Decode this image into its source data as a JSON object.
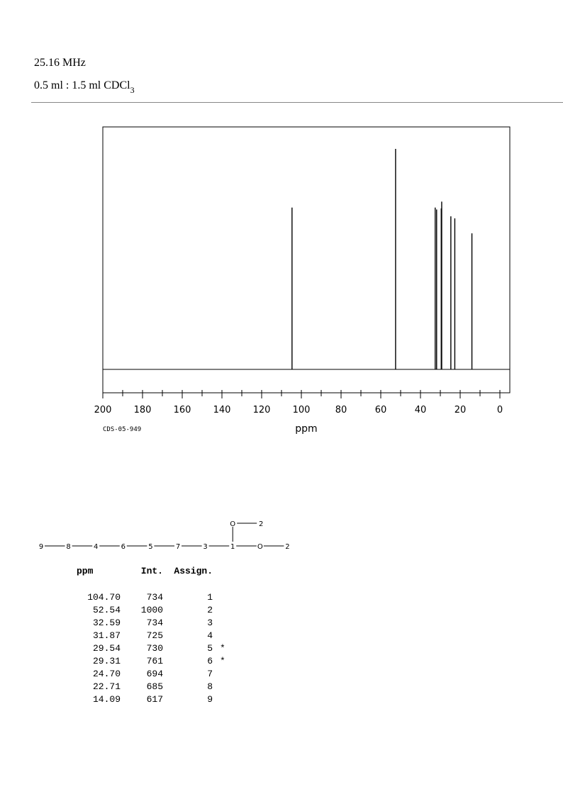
{
  "header": {
    "frequency": "25.16 MHz",
    "solvent_prefix": "0.5 ml : 1.5 ml CDCl",
    "solvent_subscript": "3"
  },
  "chart_data": {
    "type": "line",
    "xlabel": "ppm",
    "xlim": [
      200,
      0
    ],
    "x_reversed": true,
    "x_ticks": [
      "200",
      "180",
      "160",
      "140",
      "120",
      "100",
      "80",
      "60",
      "40",
      "20",
      "0"
    ],
    "code_label": "CDS-05-949",
    "peaks": [
      {
        "ppm": 104.7,
        "intensity": 734
      },
      {
        "ppm": 52.54,
        "intensity": 1000
      },
      {
        "ppm": 32.59,
        "intensity": 734
      },
      {
        "ppm": 31.87,
        "intensity": 725
      },
      {
        "ppm": 29.54,
        "intensity": 730
      },
      {
        "ppm": 29.31,
        "intensity": 761
      },
      {
        "ppm": 24.7,
        "intensity": 694
      },
      {
        "ppm": 22.71,
        "intensity": 685
      },
      {
        "ppm": 14.09,
        "intensity": 617
      }
    ],
    "grid": false
  },
  "structure": {
    "chain": [
      "9",
      "8",
      "4",
      "6",
      "5",
      "7",
      "3",
      "1",
      "O",
      "2"
    ],
    "branch": [
      "O",
      "2"
    ]
  },
  "table": {
    "headers": [
      "ppm",
      "Int.",
      "Assign."
    ],
    "rows": [
      {
        "ppm": "104.70",
        "int": "734",
        "assign": "1",
        "star": ""
      },
      {
        "ppm": "52.54",
        "int": "1000",
        "assign": "2",
        "star": ""
      },
      {
        "ppm": "32.59",
        "int": "734",
        "assign": "3",
        "star": ""
      },
      {
        "ppm": "31.87",
        "int": "725",
        "assign": "4",
        "star": ""
      },
      {
        "ppm": "29.54",
        "int": "730",
        "assign": "5",
        "star": "*"
      },
      {
        "ppm": "29.31",
        "int": "761",
        "assign": "6",
        "star": "*"
      },
      {
        "ppm": "24.70",
        "int": "694",
        "assign": "7",
        "star": ""
      },
      {
        "ppm": "22.71",
        "int": "685",
        "assign": "8",
        "star": ""
      },
      {
        "ppm": "14.09",
        "int": "617",
        "assign": "9",
        "star": ""
      }
    ]
  }
}
